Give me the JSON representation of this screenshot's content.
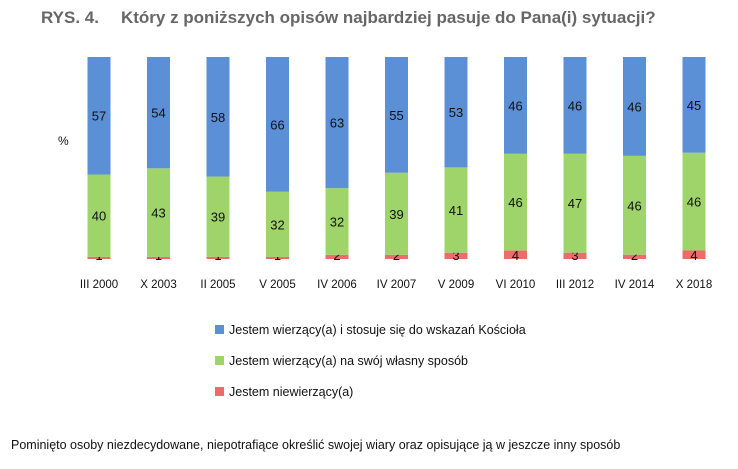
{
  "chart_data": {
    "type": "bar",
    "stacked": true,
    "title_prefix": "RYS. 4.",
    "title": "Który z poniższych opisów najbardziej pasuje do Pana(i) sytuacji?",
    "ylabel": "%",
    "xlabel": "",
    "categories": [
      "III 2000",
      "X 2003",
      "II 2005",
      "V 2005",
      "IV 2006",
      "IV 2007",
      "V 2009",
      "VI 2010",
      "III 2012",
      "IV 2014",
      "X 2018"
    ],
    "series": [
      {
        "name": "Jestem niewierzący(a)",
        "color": "#ee6b6b",
        "values": [
          1,
          1,
          1,
          1,
          2,
          2,
          3,
          4,
          3,
          2,
          4
        ]
      },
      {
        "name": "Jestem wierzący(a) na swój własny sposób",
        "color": "#9fd46a",
        "values": [
          40,
          43,
          39,
          32,
          32,
          39,
          41,
          46,
          47,
          46,
          46
        ]
      },
      {
        "name": "Jestem wierzący(a) i stosuje się do wskazań Kościoła",
        "color": "#5b8fd6",
        "values": [
          57,
          54,
          58,
          66,
          63,
          55,
          53,
          46,
          46,
          46,
          45
        ]
      }
    ],
    "legend_order": [
      2,
      1,
      0
    ],
    "legend_position": "bottom",
    "grid": false
  },
  "note": "Pominięto osoby niezdecydowane, niepotrafiące określić swojej wiary oraz opisujące ją w jeszcze inny sposób"
}
